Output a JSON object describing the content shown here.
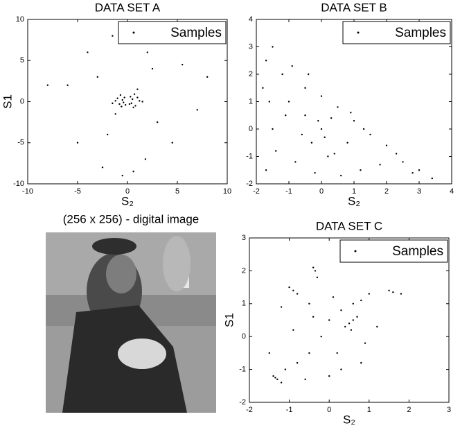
{
  "chart_data": [
    {
      "type": "scatter",
      "title": "DATA SET A",
      "x_label": "S₂",
      "y_label": "S1",
      "x": [
        -0.5,
        -0.8,
        -0.3,
        -1.2,
        -0.6,
        -0.4,
        -1.0,
        -0.7,
        -0.2,
        -1.5,
        0.5,
        0.8,
        0.3,
        1.2,
        0.6,
        0.4,
        1.0,
        0.7,
        0.2,
        1.5,
        -3,
        -2,
        2.5,
        3,
        -4,
        4.5,
        -1.5,
        1.8,
        -6,
        7,
        -8,
        8,
        -2.5,
        2,
        -0.5,
        0.6,
        -5,
        5.5,
        1,
        -1.2
      ],
      "series": [
        {
          "name": "Samples",
          "color": "#000000",
          "values": [
            0.2,
            -0.3,
            0.5,
            0.1,
            -0.6,
            -0.1,
            0.4,
            0.8,
            -0.4,
            -0.2,
            0.3,
            -0.5,
            0.6,
            0.1,
            -0.7,
            -0.2,
            0.5,
            0.9,
            -0.3,
            0.0,
            3,
            -4,
            4,
            -2.5,
            6,
            -5,
            8,
            -7,
            2,
            -1,
            2,
            3,
            -8,
            6,
            -9,
            -8.5,
            -5,
            4.5,
            1.5,
            -1.5
          ]
        }
      ],
      "xlim": [
        -10,
        10
      ],
      "ylim": [
        -10,
        10
      ],
      "xticks": [
        -10,
        -5,
        0,
        5,
        10
      ],
      "yticks": [
        -10,
        -5,
        0,
        5,
        10
      ],
      "legend": "upper right"
    },
    {
      "type": "scatter",
      "title": "DATA SET B",
      "x_label": "S₂",
      "x": [
        -1.5,
        -1.7,
        -1.2,
        -1,
        -1.5,
        -1.7,
        -0.5,
        -0.5,
        -0.3,
        0,
        0.2,
        0,
        0.5,
        0.8,
        1,
        1.2,
        1.5,
        2,
        2.5,
        3,
        3.4,
        -1.8,
        -0.8,
        0.3,
        -1.1,
        -0.2,
        1.8,
        0.6,
        -1.4,
        -0.9,
        0.9,
        2.3,
        -0.6,
        0.1,
        -0.1,
        1.3,
        -1.6,
        2.8,
        -0.4,
        0.4
      ],
      "series": [
        {
          "name": "Samples",
          "color": "#000000",
          "values": [
            3,
            2.5,
            2,
            1,
            0,
            -1.5,
            1.5,
            0.5,
            -0.5,
            0,
            -1,
            1.2,
            0.8,
            -0.5,
            0.3,
            -1.5,
            -0.2,
            -0.6,
            -1.2,
            -1.5,
            -1.8,
            1.5,
            -1.2,
            0.4,
            0.5,
            -1.6,
            -1.3,
            -1.7,
            -0.8,
            2.3,
            0.6,
            -0.9,
            -0.2,
            -0.3,
            0.3,
            0,
            1,
            -1.6,
            2,
            -0.9
          ]
        }
      ],
      "xlim": [
        -2,
        4
      ],
      "ylim": [
        -2,
        4
      ],
      "xticks": [
        -2,
        -1,
        0,
        1,
        2,
        3,
        4
      ],
      "yticks": [
        -2,
        -1,
        0,
        1,
        2,
        3,
        4
      ],
      "legend": "upper right"
    },
    {
      "type": "scatter",
      "title": "DATA SET C",
      "x_label": "S₂",
      "y_label": "S1",
      "x": [
        -1.3,
        -1.4,
        -1.2,
        -1.1,
        -1.35,
        -0.9,
        -1.0,
        -0.8,
        -0.35,
        -0.3,
        -0.4,
        0.5,
        0.6,
        0.4,
        0.55,
        0.7,
        0.3,
        0.6,
        0.8,
        1.5,
        1.6,
        1.8,
        1.0,
        0,
        -0.2,
        -0.5,
        -0.8,
        -0.5,
        0.2,
        0.3,
        0,
        -0.6,
        -0.9,
        -1.2,
        0.9,
        0.8,
        -0.4,
        0.1,
        1.2,
        -1.5
      ],
      "series": [
        {
          "name": "Samples",
          "color": "#000000",
          "values": [
            -1.3,
            -1.2,
            -1.4,
            -1.0,
            -1.25,
            1.4,
            1.5,
            1.3,
            2,
            1.8,
            2.1,
            0.4,
            0.5,
            0.3,
            0.2,
            0.6,
            0.8,
            1.0,
            1.1,
            1.4,
            1.35,
            1.3,
            1.3,
            0.5,
            0,
            -0.5,
            -0.8,
            1.0,
            -0.5,
            -1.0,
            -1.2,
            -1.3,
            0.2,
            0.9,
            -0.2,
            -0.8,
            0.6,
            1.2,
            0.3,
            -0.5
          ]
        }
      ],
      "xlim": [
        -2,
        3
      ],
      "ylim": [
        -2,
        3
      ],
      "xticks": [
        -2,
        -1,
        0,
        1,
        2,
        3
      ],
      "yticks": [
        -2,
        -1,
        0,
        1,
        2,
        3
      ],
      "legend": "upper right"
    }
  ],
  "image": {
    "caption": "(256 x 256) - digital image"
  }
}
